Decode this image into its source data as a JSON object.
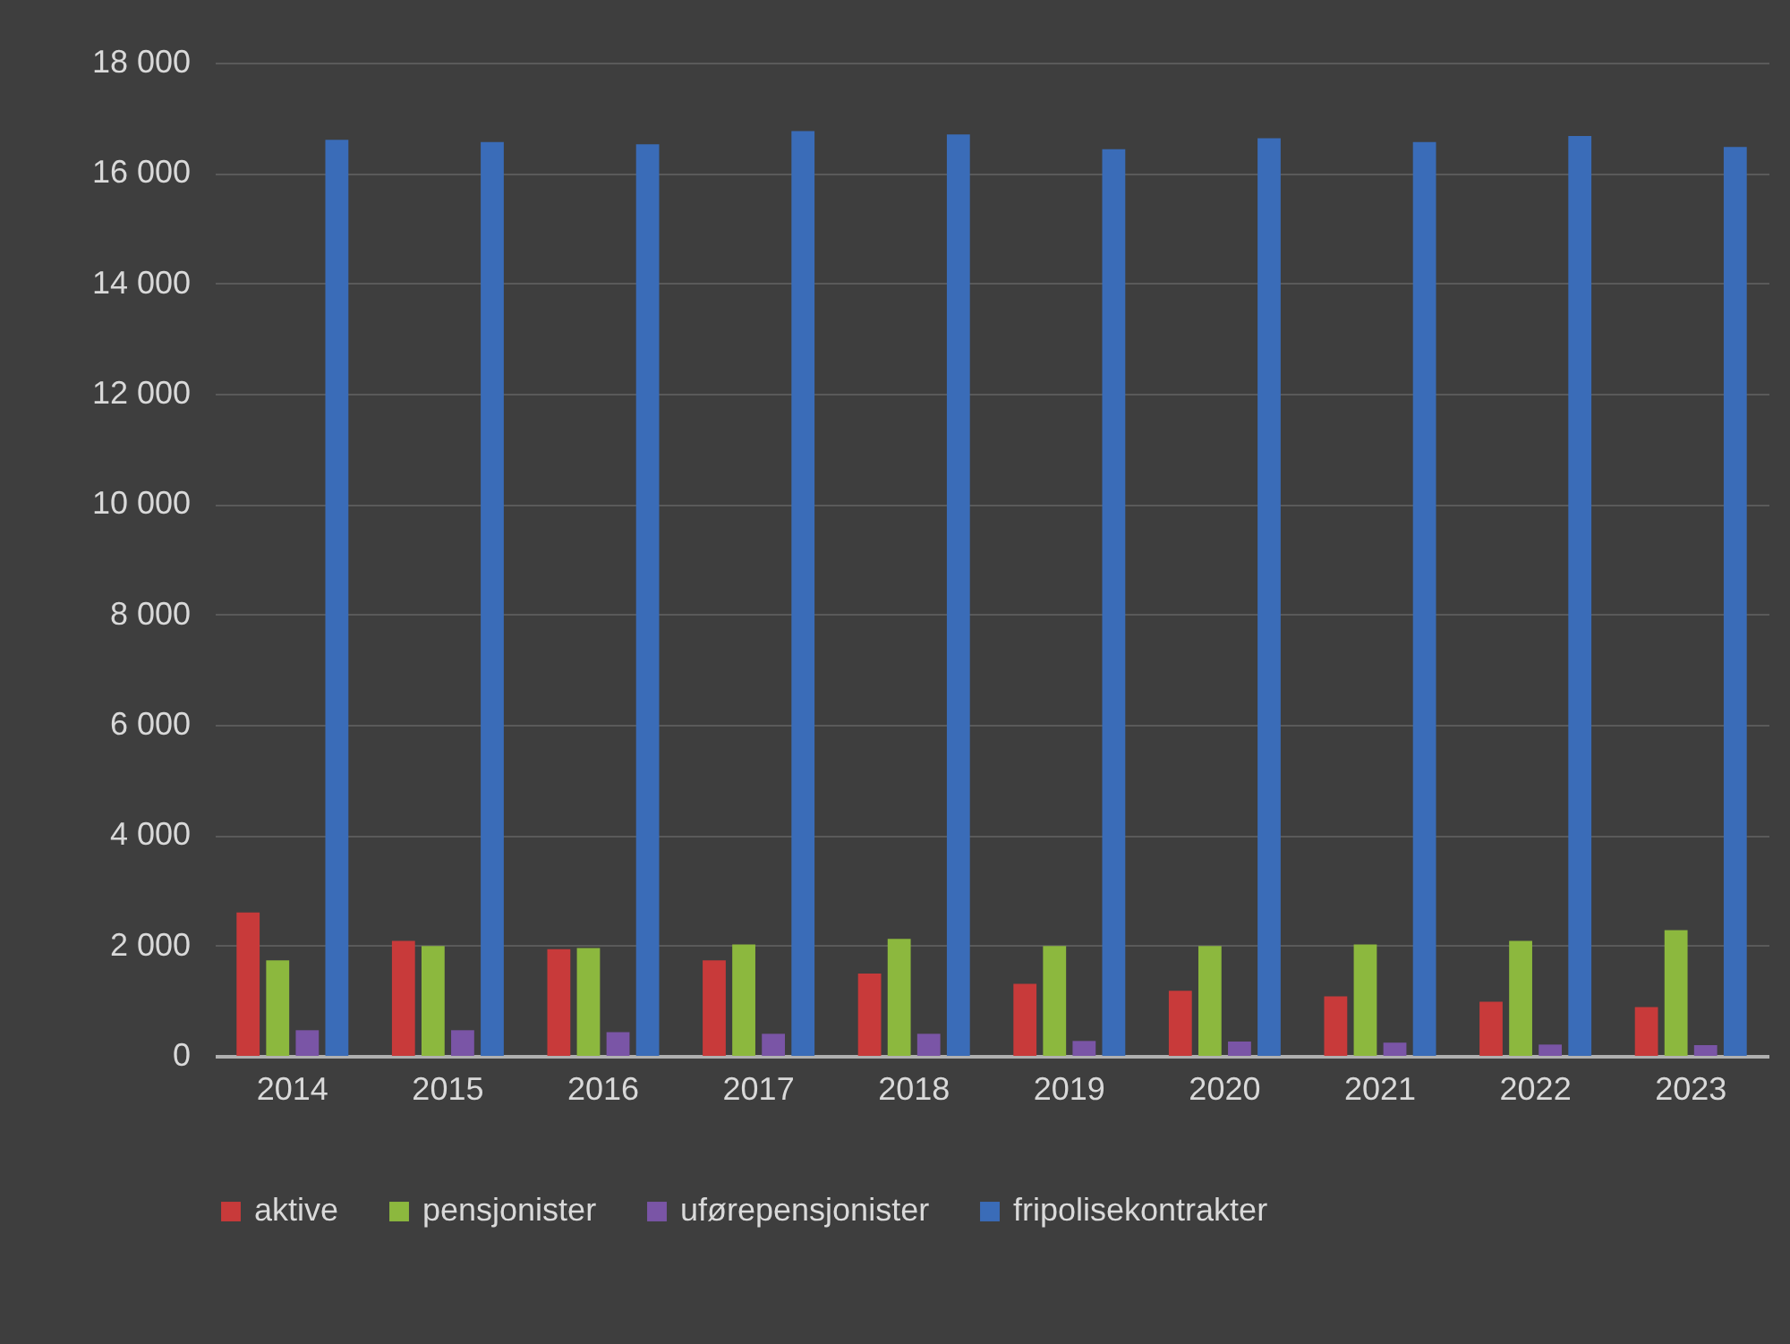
{
  "chart_data": {
    "type": "bar",
    "categories": [
      "2014",
      "2015",
      "2016",
      "2017",
      "2018",
      "2019",
      "2020",
      "2021",
      "2022",
      "2023"
    ],
    "series": [
      {
        "name": "aktive",
        "color": "#c83a3a",
        "values": [
          2600,
          2085,
          1935,
          1730,
          1490,
          1305,
          1180,
          1080,
          980,
          885
        ]
      },
      {
        "name": "pensjonister",
        "color": "#8cb83e",
        "values": [
          1730,
          1990,
          1955,
          2020,
          2120,
          1990,
          1990,
          2020,
          2085,
          2280
        ]
      },
      {
        "name": "uførepensjonister",
        "color": "#7a55a6",
        "values": [
          465,
          465,
          430,
          400,
          400,
          270,
          260,
          240,
          205,
          195
        ]
      },
      {
        "name": "fripolisekontrakter",
        "color": "#3a6cb8",
        "values": [
          16600,
          16560,
          16520,
          16760,
          16700,
          16430,
          16630,
          16560,
          16670,
          16470
        ]
      }
    ],
    "ylim": [
      0,
      18000
    ],
    "yticks": [
      {
        "value": 0,
        "label": "0"
      },
      {
        "value": 2000,
        "label": "2 000"
      },
      {
        "value": 4000,
        "label": "4 000"
      },
      {
        "value": 6000,
        "label": "6 000"
      },
      {
        "value": 8000,
        "label": "8 000"
      },
      {
        "value": 10000,
        "label": "10 000"
      },
      {
        "value": 12000,
        "label": "12 000"
      },
      {
        "value": 14000,
        "label": "14 000"
      },
      {
        "value": 16000,
        "label": "16 000"
      },
      {
        "value": 18000,
        "label": "18 000"
      }
    ],
    "grid": "y",
    "legend": "bottom"
  }
}
